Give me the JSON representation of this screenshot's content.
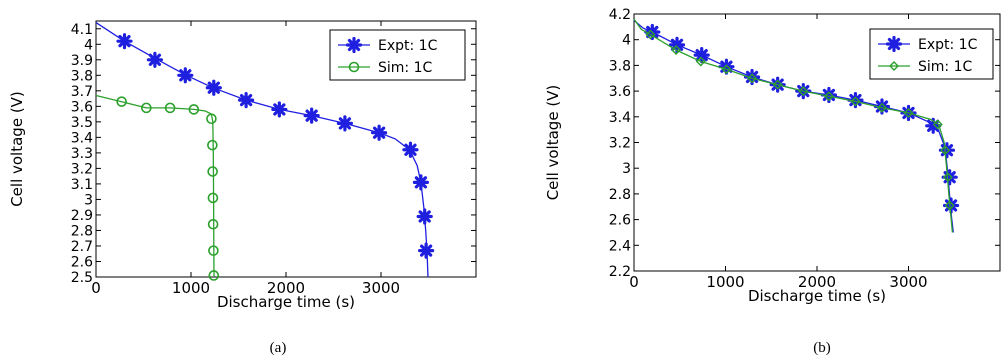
{
  "chart_data": [
    {
      "type": "line",
      "caption": "(a)",
      "xlabel": "Discharge time (s)",
      "ylabel": "Cell voltage (V)",
      "xlim": [
        0,
        4000
      ],
      "ylim": [
        2.5,
        4.15
      ],
      "xticks": [
        0,
        1000,
        2000,
        3000
      ],
      "xtick_labels": [
        "0",
        "1000",
        "2000",
        "3000"
      ],
      "yticks": [
        2.5,
        2.6,
        2.7,
        2.8,
        2.9,
        3.0,
        3.1,
        3.2,
        3.3,
        3.4,
        3.5,
        3.6,
        3.7,
        3.8,
        3.9,
        4.0,
        4.1
      ],
      "ytick_labels": [
        "2.5",
        "2.6",
        "2.7",
        "2.8",
        "2.9",
        "3",
        "3.1",
        "3.2",
        "3.3",
        "3.4",
        "3.5",
        "3.6",
        "3.7",
        "3.8",
        "3.9",
        "4",
        "4.1"
      ],
      "grid": false,
      "legend_position": "top-right",
      "series": [
        {
          "name": "Expt: 1C",
          "color": "#1f1fe0",
          "marker": "asterisk",
          "line": [
            [
              0,
              4.14
            ],
            [
              300,
              4.02
            ],
            [
              650,
              3.9
            ],
            [
              950,
              3.8
            ],
            [
              1230,
              3.72
            ],
            [
              1580,
              3.64
            ],
            [
              1930,
              3.58
            ],
            [
              2270,
              3.54
            ],
            [
              2620,
              3.49
            ],
            [
              2980,
              3.43
            ],
            [
              3150,
              3.39
            ],
            [
              3300,
              3.32
            ],
            [
              3380,
              3.22
            ],
            [
              3420,
              3.11
            ],
            [
              3450,
              2.95
            ],
            [
              3470,
              2.8
            ],
            [
              3485,
              2.65
            ],
            [
              3495,
              2.5
            ]
          ],
          "markers": [
            [
              300,
              4.02
            ],
            [
              620,
              3.9
            ],
            [
              940,
              3.8
            ],
            [
              1240,
              3.72
            ],
            [
              1580,
              3.64
            ],
            [
              1930,
              3.58
            ],
            [
              2270,
              3.54
            ],
            [
              2620,
              3.49
            ],
            [
              2980,
              3.43
            ],
            [
              3310,
              3.32
            ],
            [
              3420,
              3.11
            ],
            [
              3460,
              2.89
            ],
            [
              3475,
              2.67
            ]
          ]
        },
        {
          "name": "Sim: 1C",
          "color": "#2ca02c",
          "marker": "circle",
          "line": [
            [
              0,
              3.67
            ],
            [
              270,
              3.63
            ],
            [
              530,
              3.59
            ],
            [
              780,
              3.59
            ],
            [
              1030,
              3.58
            ],
            [
              1150,
              3.57
            ],
            [
              1215,
              3.55
            ],
            [
              1230,
              3.5
            ],
            [
              1235,
              3.3
            ],
            [
              1238,
              3.0
            ],
            [
              1240,
              2.7
            ],
            [
              1242,
              2.5
            ]
          ],
          "markers": [
            [
              270,
              3.63
            ],
            [
              530,
              3.59
            ],
            [
              780,
              3.59
            ],
            [
              1030,
              3.58
            ],
            [
              1215,
              3.52
            ],
            [
              1225,
              3.35
            ],
            [
              1228,
              3.18
            ],
            [
              1231,
              3.01
            ],
            [
              1233,
              2.84
            ],
            [
              1236,
              2.67
            ],
            [
              1240,
              2.51
            ]
          ]
        }
      ]
    },
    {
      "type": "line",
      "caption": "(b)",
      "xlabel": "Discharge time (s)",
      "ylabel": "Cell voltage (V)",
      "xlim": [
        0,
        4000
      ],
      "ylim": [
        2.2,
        4.2
      ],
      "xticks": [
        0,
        1000,
        2000,
        3000
      ],
      "xtick_labels": [
        "0",
        "1000",
        "2000",
        "3000"
      ],
      "yticks": [
        2.2,
        2.4,
        2.6,
        2.8,
        3.0,
        3.2,
        3.4,
        3.6,
        3.8,
        4.0,
        4.2
      ],
      "ytick_labels": [
        "2.2",
        "2.4",
        "2.6",
        "2.8",
        "3",
        "3.2",
        "3.4",
        "3.6",
        "3.8",
        "4",
        "4.2"
      ],
      "grid": false,
      "legend_position": "top-right",
      "series": [
        {
          "name": "Expt: 1C",
          "color": "#1f1fe0",
          "marker": "asterisk",
          "line": [
            [
              0,
              4.15
            ],
            [
              100,
              4.09
            ],
            [
              200,
              4.06
            ],
            [
              470,
              3.96
            ],
            [
              740,
              3.88
            ],
            [
              1010,
              3.79
            ],
            [
              1290,
              3.71
            ],
            [
              1570,
              3.65
            ],
            [
              1850,
              3.6
            ],
            [
              2130,
              3.57
            ],
            [
              2420,
              3.53
            ],
            [
              2710,
              3.48
            ],
            [
              3000,
              3.43
            ],
            [
              3220,
              3.36
            ],
            [
              3330,
              3.29
            ],
            [
              3400,
              3.16
            ],
            [
              3430,
              2.96
            ],
            [
              3450,
              2.78
            ],
            [
              3470,
              2.62
            ],
            [
              3490,
              2.5
            ]
          ],
          "markers": [
            [
              200,
              4.06
            ],
            [
              470,
              3.96
            ],
            [
              740,
              3.88
            ],
            [
              1010,
              3.79
            ],
            [
              1290,
              3.71
            ],
            [
              1570,
              3.65
            ],
            [
              1850,
              3.6
            ],
            [
              2130,
              3.57
            ],
            [
              2420,
              3.53
            ],
            [
              2710,
              3.48
            ],
            [
              3000,
              3.43
            ],
            [
              3270,
              3.33
            ],
            [
              3420,
              3.14
            ],
            [
              3450,
              2.93
            ],
            [
              3465,
              2.71
            ]
          ]
        },
        {
          "name": "Sim: 1C",
          "color": "#2ca02c",
          "marker": "diamond",
          "line": [
            [
              0,
              4.16
            ],
            [
              80,
              4.08
            ],
            [
              180,
              4.04
            ],
            [
              460,
              3.92
            ],
            [
              730,
              3.83
            ],
            [
              1010,
              3.77
            ],
            [
              1290,
              3.7
            ],
            [
              1570,
              3.65
            ],
            [
              1850,
              3.6
            ],
            [
              2130,
              3.56
            ],
            [
              2420,
              3.52
            ],
            [
              2710,
              3.47
            ],
            [
              3000,
              3.43
            ],
            [
              3240,
              3.38
            ],
            [
              3330,
              3.34
            ],
            [
              3390,
              3.2
            ],
            [
              3420,
              2.98
            ],
            [
              3440,
              2.8
            ],
            [
              3460,
              2.65
            ],
            [
              3480,
              2.5
            ]
          ],
          "markers": [
            [
              180,
              4.04
            ],
            [
              460,
              3.92
            ],
            [
              730,
              3.83
            ],
            [
              1010,
              3.77
            ],
            [
              1290,
              3.7
            ],
            [
              1570,
              3.65
            ],
            [
              1850,
              3.6
            ],
            [
              2130,
              3.56
            ],
            [
              2420,
              3.52
            ],
            [
              2710,
              3.47
            ],
            [
              3000,
              3.43
            ],
            [
              3320,
              3.34
            ],
            [
              3400,
              3.14
            ],
            [
              3430,
              2.93
            ],
            [
              3450,
              2.71
            ]
          ]
        }
      ]
    }
  ]
}
